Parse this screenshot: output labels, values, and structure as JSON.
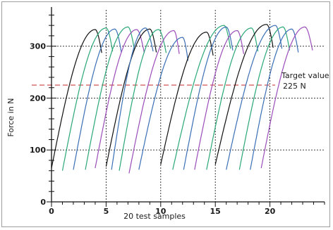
{
  "chart_data": {
    "type": "line",
    "xlabel": "20 test samples",
    "ylabel": "Force in N",
    "xlim": [
      0,
      25
    ],
    "ylim": [
      0,
      370
    ],
    "x_ticks": [
      0,
      5,
      10,
      15,
      20
    ],
    "x_tick_labels": [
      "0",
      "5",
      "10",
      "15",
      "20"
    ],
    "y_ticks": [
      0,
      100,
      200,
      300
    ],
    "y_tick_labels": [
      "0",
      "100",
      "200",
      "300"
    ],
    "grid": "dotted at labeled ticks",
    "target": {
      "value": 225,
      "label_line1": "Target value",
      "label_line2": "225 N",
      "color": "#c62828"
    },
    "series_colors": {
      "black": "#111111",
      "green": "#2aa876",
      "blue": "#3b6fb6",
      "purple": "#9b4dba"
    },
    "curves": [
      {
        "color": "black",
        "x_start": 0.0,
        "x_peak": 4.0,
        "y_start": 65,
        "y_peak": 332,
        "x_end": 4.6
      },
      {
        "color": "green",
        "x_start": 1.0,
        "x_peak": 5.0,
        "y_start": 60,
        "y_peak": 335,
        "x_end": 5.6
      },
      {
        "color": "blue",
        "x_start": 2.0,
        "x_peak": 5.8,
        "y_start": 62,
        "y_peak": 333,
        "x_end": 6.4
      },
      {
        "color": "green",
        "x_start": 3.1,
        "x_peak": 7.0,
        "y_start": 62,
        "y_peak": 337,
        "x_end": 7.6
      },
      {
        "color": "purple",
        "x_start": 4.0,
        "x_peak": 7.8,
        "y_start": 65,
        "y_peak": 332,
        "x_end": 8.5
      },
      {
        "color": "black",
        "x_start": 5.0,
        "x_peak": 9.0,
        "y_start": 68,
        "y_peak": 333,
        "x_end": 9.6
      },
      {
        "color": "blue",
        "x_start": 5.5,
        "x_peak": 8.6,
        "y_start": 62,
        "y_peak": 335,
        "x_end": 9.3
      },
      {
        "color": "green",
        "x_start": 6.2,
        "x_peak": 9.8,
        "y_start": 60,
        "y_peak": 332,
        "x_end": 10.5
      },
      {
        "color": "purple",
        "x_start": 7.1,
        "x_peak": 11.2,
        "y_start": 55,
        "y_peak": 330,
        "x_end": 11.7
      },
      {
        "color": "blue",
        "x_start": 8.0,
        "x_peak": 12.0,
        "y_start": 62,
        "y_peak": 317,
        "x_end": 12.5
      },
      {
        "color": "black",
        "x_start": 10.0,
        "x_peak": 14.2,
        "y_start": 72,
        "y_peak": 327,
        "x_end": 14.8
      },
      {
        "color": "green",
        "x_start": 11.1,
        "x_peak": 15.8,
        "y_start": 62,
        "y_peak": 340,
        "x_end": 16.4
      },
      {
        "color": "blue",
        "x_start": 12.1,
        "x_peak": 16.0,
        "y_start": 62,
        "y_peak": 337,
        "x_end": 16.6
      },
      {
        "color": "purple",
        "x_start": 13.1,
        "x_peak": 17.0,
        "y_start": 62,
        "y_peak": 330,
        "x_end": 17.6
      },
      {
        "color": "green",
        "x_start": 14.2,
        "x_peak": 18.3,
        "y_start": 62,
        "y_peak": 335,
        "x_end": 18.9
      },
      {
        "color": "black",
        "x_start": 15.0,
        "x_peak": 19.7,
        "y_start": 72,
        "y_peak": 342,
        "x_end": 20.3
      },
      {
        "color": "blue",
        "x_start": 16.0,
        "x_peak": 20.5,
        "y_start": 62,
        "y_peak": 340,
        "x_end": 21.1
      },
      {
        "color": "green",
        "x_start": 17.2,
        "x_peak": 21.2,
        "y_start": 62,
        "y_peak": 337,
        "x_end": 21.8
      },
      {
        "color": "blue",
        "x_start": 18.2,
        "x_peak": 22.0,
        "y_start": 62,
        "y_peak": 333,
        "x_end": 22.6
      },
      {
        "color": "purple",
        "x_start": 19.2,
        "x_peak": 23.2,
        "y_start": 65,
        "y_peak": 337,
        "x_end": 23.9
      }
    ]
  }
}
